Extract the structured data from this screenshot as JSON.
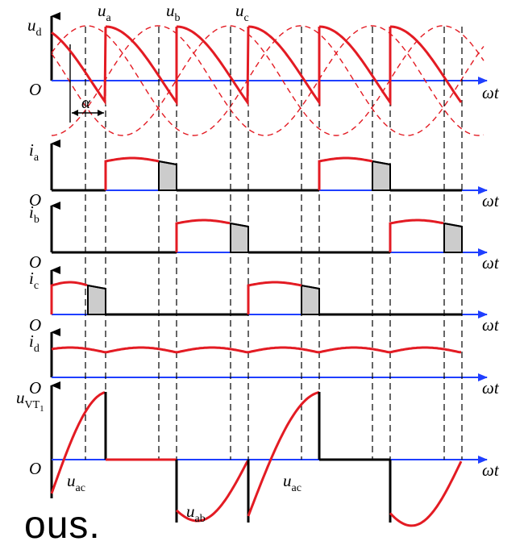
{
  "labels": {
    "ud": "u",
    "ud_sub": "d",
    "ua": "u",
    "ua_sub": "a",
    "ub": "u",
    "ub_sub": "b",
    "uc": "u",
    "uc_sub": "c",
    "origin": "O",
    "wt": "ωt",
    "alpha": "α",
    "ia": "i",
    "ia_sub": "a",
    "ib": "i",
    "ib_sub": "b",
    "ic": "i",
    "ic_sub": "c",
    "id": "i",
    "id_sub": "d",
    "uvt": "u",
    "uvt_sub": "VT",
    "uvt_subsub": "1",
    "uac1": "u",
    "uac1_sub": "ac",
    "uab": "u",
    "uab_sub": "ab",
    "uac2": "u",
    "uac2_sub": "ac"
  },
  "caption": "ous.",
  "colors": {
    "waveform": "#e31b23",
    "axis": "#1f3fff",
    "guide": "#000000",
    "shade": "#cccccc"
  }
}
